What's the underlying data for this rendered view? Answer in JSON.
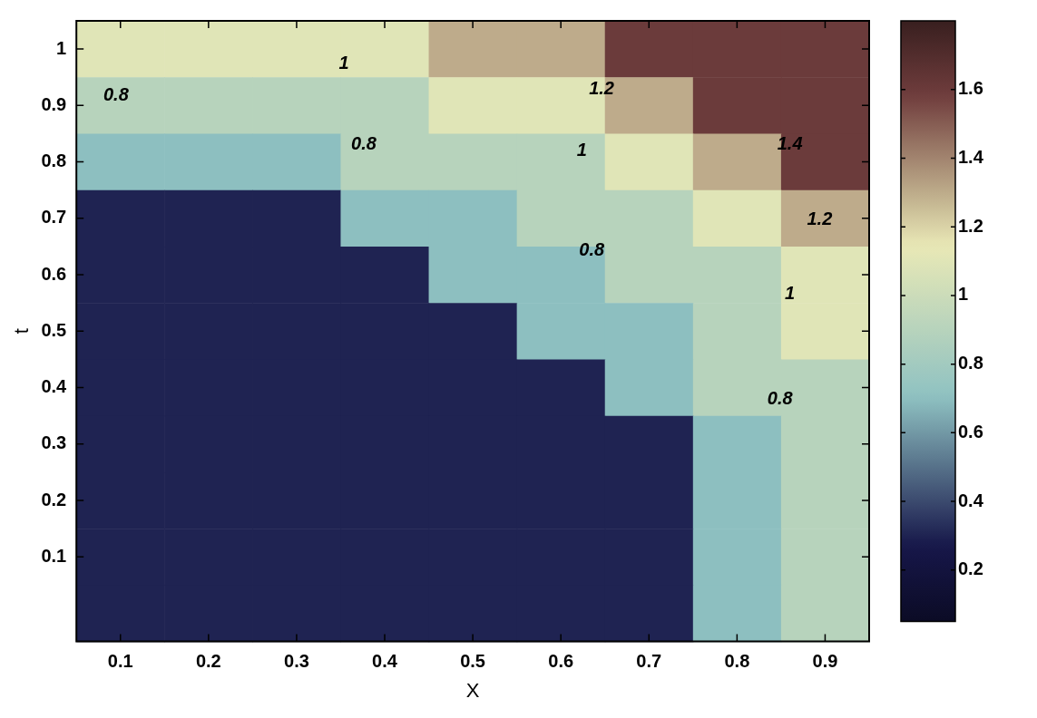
{
  "chart_data": {
    "type": "heatmap",
    "xlabel": "X",
    "ylabel": "t",
    "categories": [
      "0.1",
      "0.2",
      "0.3",
      "0.4",
      "0.5",
      "0.6",
      "0.7",
      "0.8",
      "0.9"
    ],
    "y_categories": [
      "1",
      "0.9",
      "0.8",
      "0.7",
      "0.6",
      "0.5",
      "0.4",
      "0.3",
      "0.2",
      "0.1",
      null
    ],
    "clim": [
      0.05,
      1.8
    ],
    "cticks": [
      0.2,
      0.4,
      0.6,
      0.8,
      1,
      1.2,
      1.4,
      1.6
    ],
    "cells": [
      [
        1.1,
        1.1,
        1.1,
        1.1,
        1.3,
        1.3,
        1.6,
        1.6,
        1.6
      ],
      [
        0.9,
        0.9,
        0.9,
        0.9,
        1.1,
        1.1,
        1.3,
        1.6,
        1.6
      ],
      [
        0.7,
        0.7,
        0.7,
        0.9,
        0.9,
        0.9,
        1.1,
        1.3,
        1.6
      ],
      [
        0.3,
        0.3,
        0.3,
        0.7,
        0.7,
        0.9,
        0.9,
        1.1,
        1.3
      ],
      [
        0.3,
        0.3,
        0.3,
        0.3,
        0.7,
        0.7,
        0.9,
        0.9,
        1.1
      ],
      [
        0.3,
        0.3,
        0.3,
        0.3,
        0.3,
        0.7,
        0.7,
        0.9,
        1.1
      ],
      [
        0.3,
        0.3,
        0.3,
        0.3,
        0.3,
        0.3,
        0.7,
        0.9,
        0.9
      ],
      [
        0.3,
        0.3,
        0.3,
        0.3,
        0.3,
        0.3,
        0.3,
        0.7,
        0.9
      ],
      [
        0.3,
        0.3,
        0.3,
        0.3,
        0.3,
        0.3,
        0.3,
        0.7,
        0.9
      ],
      [
        0.3,
        0.3,
        0.3,
        0.3,
        0.3,
        0.3,
        0.3,
        0.7,
        0.9
      ],
      [
        0.3,
        0.3,
        0.3,
        0.3,
        0.3,
        0.3,
        0.3,
        0.7,
        0.9
      ]
    ],
    "annotations": [
      "0.8",
      "0.8",
      "1",
      "1.2",
      "1",
      "0.8",
      "1.4",
      "1.2",
      "1",
      "0.8"
    ]
  }
}
